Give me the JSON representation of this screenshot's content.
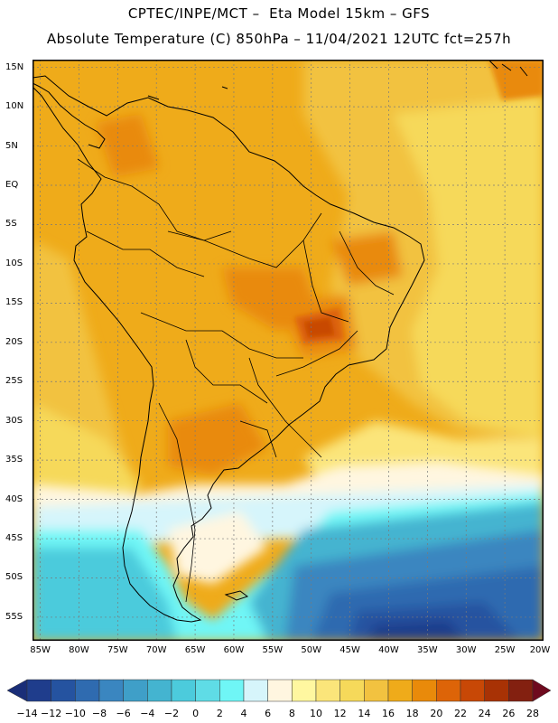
{
  "header": {
    "line1": "CPTEC/INPE/MCT –  Eta Model 15km – GFS",
    "line2": "Absolute Temperature (C) 850hPa – 11/04/2021 12UTC fct=257h"
  },
  "map": {
    "lat_labels": [
      "15N",
      "10N",
      "5N",
      "EQ",
      "5S",
      "10S",
      "15S",
      "20S",
      "25S",
      "30S",
      "35S",
      "40S",
      "45S",
      "50S",
      "55S"
    ],
    "lon_labels": [
      "85W",
      "80W",
      "75W",
      "70W",
      "65W",
      "60W",
      "55W",
      "50W",
      "45W",
      "40W",
      "35W",
      "30W",
      "25W",
      "20W"
    ],
    "lat_range": [
      16,
      -58
    ],
    "lon_range": [
      -86,
      -20
    ]
  },
  "colorbar": {
    "labels": [
      "-14",
      "-12",
      "-10",
      "-8",
      "-6",
      "-4",
      "-2",
      "0",
      "2",
      "4",
      "6",
      "8",
      "10",
      "12",
      "14",
      "16",
      "18",
      "20",
      "22",
      "24",
      "26",
      "28"
    ],
    "colors": [
      "#1f3d8c",
      "#2553a0",
      "#2f6bb0",
      "#3a86c0",
      "#3f9fc8",
      "#44b4d0",
      "#4ccbdc",
      "#5fdce6",
      "#6ff6f6",
      "#d6f5fb",
      "#fff6e0",
      "#fff7a0",
      "#fbe57a",
      "#f6d95a",
      "#f2c240",
      "#efab1a",
      "#e98a0a",
      "#dd6408",
      "#c84806",
      "#a83205",
      "#832010"
    ],
    "low_color": "#1a2e78",
    "high_color": "#6e0a1e"
  }
}
